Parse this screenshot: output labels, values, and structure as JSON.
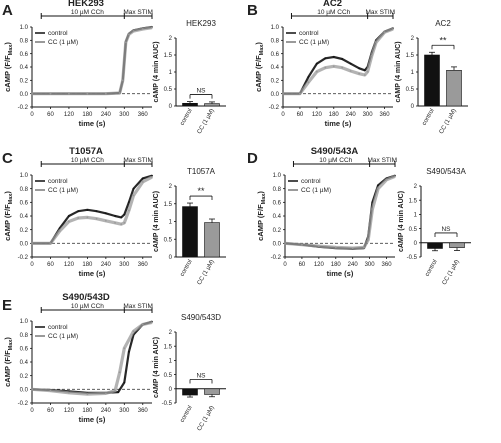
{
  "panels": [
    {
      "letter": "A",
      "title": "HEK293",
      "bar_title": "HEK293"
    },
    {
      "letter": "B",
      "title": "AC2",
      "bar_title": "AC2"
    },
    {
      "letter": "C",
      "title": "T1057A",
      "bar_title": "T1057A"
    },
    {
      "letter": "D",
      "title": "S490/543A",
      "bar_title": "S490/543A"
    },
    {
      "letter": "E",
      "title": "S490/543D",
      "bar_title": "S490/543D"
    }
  ],
  "common": {
    "stim_label_cch": "10 µM CCh",
    "stim_label_max": "Max STIM",
    "trace_ylabel": "cAMP (F/F",
    "trace_ylabel_sub": "Max",
    "trace_ylabel_close": ")",
    "trace_xlabel": "time (s)",
    "bar_ylabel": "cAMP (4 min AUC)",
    "legend_control": "control",
    "legend_cc": "CC (1 µM)",
    "bar_categories": [
      "control",
      "CC (1 µM)"
    ]
  },
  "colors": {
    "control": "#111111",
    "cc": "#9a9a9a"
  },
  "chart_data": [
    {
      "type": "line",
      "panel": "A",
      "title": "HEK293",
      "xlabel": "time (s)",
      "ylabel": "cAMP (F/FMax)",
      "xlim": [
        0,
        390
      ],
      "ylim": [
        -0.2,
        1.0
      ],
      "xticks": [
        0,
        60,
        120,
        180,
        240,
        300,
        360
      ],
      "yticks": [
        -0.2,
        0.0,
        0.2,
        0.4,
        0.6,
        0.8,
        1.0
      ],
      "series": [
        {
          "name": "control",
          "points": [
            [
              0,
              0
            ],
            [
              60,
              0
            ],
            [
              120,
              0
            ],
            [
              180,
              0
            ],
            [
              240,
              0
            ],
            [
              285,
              0.01
            ],
            [
              295,
              0.2
            ],
            [
              305,
              0.78
            ],
            [
              315,
              0.9
            ],
            [
              330,
              0.95
            ],
            [
              360,
              0.98
            ],
            [
              390,
              1.0
            ]
          ]
        },
        {
          "name": "CC (1 µM)",
          "points": [
            [
              0,
              0
            ],
            [
              60,
              0
            ],
            [
              120,
              0
            ],
            [
              180,
              0
            ],
            [
              240,
              0
            ],
            [
              285,
              0.01
            ],
            [
              295,
              0.2
            ],
            [
              305,
              0.77
            ],
            [
              315,
              0.89
            ],
            [
              330,
              0.94
            ],
            [
              360,
              0.97
            ],
            [
              390,
              0.99
            ]
          ]
        }
      ]
    },
    {
      "type": "bar",
      "panel": "A",
      "title": "HEK293",
      "categories": [
        "control",
        "CC (1 µM)"
      ],
      "values": [
        0.08,
        0.07
      ],
      "errors": [
        0.05,
        0.05
      ],
      "ylabel": "cAMP (4 min AUC)",
      "ylim": [
        0,
        2.0
      ],
      "yticks": [
        0,
        0.5,
        1.0,
        1.5,
        2.0
      ],
      "significance": "NS"
    },
    {
      "type": "line",
      "panel": "B",
      "title": "AC2",
      "xlabel": "time (s)",
      "ylabel": "cAMP (F/FMax)",
      "xlim": [
        0,
        390
      ],
      "ylim": [
        -0.2,
        1.0
      ],
      "xticks": [
        0,
        60,
        120,
        180,
        240,
        300,
        360
      ],
      "yticks": [
        -0.2,
        0.0,
        0.2,
        0.4,
        0.6,
        0.8,
        1.0
      ],
      "series": [
        {
          "name": "control",
          "points": [
            [
              0,
              0
            ],
            [
              60,
              0
            ],
            [
              90,
              0.25
            ],
            [
              120,
              0.45
            ],
            [
              150,
              0.53
            ],
            [
              180,
              0.55
            ],
            [
              210,
              0.52
            ],
            [
              240,
              0.45
            ],
            [
              270,
              0.38
            ],
            [
              290,
              0.35
            ],
            [
              300,
              0.4
            ],
            [
              315,
              0.62
            ],
            [
              330,
              0.8
            ],
            [
              360,
              0.93
            ],
            [
              390,
              0.98
            ]
          ]
        },
        {
          "name": "CC (1 µM)",
          "points": [
            [
              0,
              0
            ],
            [
              60,
              0
            ],
            [
              90,
              0.17
            ],
            [
              120,
              0.33
            ],
            [
              150,
              0.39
            ],
            [
              180,
              0.41
            ],
            [
              210,
              0.39
            ],
            [
              240,
              0.34
            ],
            [
              270,
              0.3
            ],
            [
              290,
              0.28
            ],
            [
              300,
              0.33
            ],
            [
              315,
              0.57
            ],
            [
              330,
              0.77
            ],
            [
              360,
              0.92
            ],
            [
              390,
              0.97
            ]
          ]
        }
      ]
    },
    {
      "type": "bar",
      "panel": "B",
      "title": "AC2",
      "categories": [
        "control",
        "CC (1 µM)"
      ],
      "values": [
        1.5,
        1.05
      ],
      "errors": [
        0.08,
        0.1
      ],
      "ylabel": "cAMP (4 min AUC)",
      "ylim": [
        0,
        2.0
      ],
      "yticks": [
        0,
        0.5,
        1.0,
        1.5,
        2.0
      ],
      "significance": "**"
    },
    {
      "type": "line",
      "panel": "C",
      "title": "T1057A",
      "xlabel": "time (s)",
      "ylabel": "cAMP (F/FMax)",
      "xlim": [
        0,
        390
      ],
      "ylim": [
        -0.2,
        1.0
      ],
      "xticks": [
        0,
        60,
        120,
        180,
        240,
        300,
        360
      ],
      "yticks": [
        -0.2,
        0.0,
        0.2,
        0.4,
        0.6,
        0.8,
        1.0
      ],
      "series": [
        {
          "name": "control",
          "points": [
            [
              0,
              0
            ],
            [
              60,
              0
            ],
            [
              90,
              0.22
            ],
            [
              120,
              0.4
            ],
            [
              150,
              0.47
            ],
            [
              180,
              0.49
            ],
            [
              210,
              0.47
            ],
            [
              240,
              0.44
            ],
            [
              270,
              0.4
            ],
            [
              290,
              0.38
            ],
            [
              300,
              0.42
            ],
            [
              315,
              0.6
            ],
            [
              330,
              0.8
            ],
            [
              360,
              0.95
            ],
            [
              390,
              0.99
            ]
          ]
        },
        {
          "name": "CC (1 µM)",
          "points": [
            [
              0,
              0
            ],
            [
              60,
              0
            ],
            [
              90,
              0.18
            ],
            [
              120,
              0.32
            ],
            [
              150,
              0.37
            ],
            [
              180,
              0.38
            ],
            [
              210,
              0.36
            ],
            [
              240,
              0.33
            ],
            [
              270,
              0.3
            ],
            [
              290,
              0.28
            ],
            [
              300,
              0.3
            ],
            [
              315,
              0.48
            ],
            [
              330,
              0.7
            ],
            [
              360,
              0.9
            ],
            [
              390,
              0.97
            ]
          ]
        }
      ]
    },
    {
      "type": "bar",
      "panel": "C",
      "title": "T1057A",
      "categories": [
        "control",
        "CC (1 µM)"
      ],
      "values": [
        1.42,
        0.97
      ],
      "errors": [
        0.1,
        0.1
      ],
      "ylabel": "cAMP (4 min AUC)",
      "ylim": [
        0,
        2.0
      ],
      "yticks": [
        0,
        0.5,
        1.0,
        1.5,
        2.0
      ],
      "significance": "**"
    },
    {
      "type": "line",
      "panel": "D",
      "title": "S490/543A",
      "xlabel": "time (s)",
      "ylabel": "cAMP (F/FMax)",
      "xlim": [
        0,
        390
      ],
      "ylim": [
        -0.2,
        1.0
      ],
      "xticks": [
        0,
        60,
        120,
        180,
        240,
        300,
        360
      ],
      "yticks": [
        -0.2,
        0.0,
        0.2,
        0.4,
        0.6,
        0.8,
        1.0
      ],
      "series": [
        {
          "name": "control",
          "points": [
            [
              0,
              0
            ],
            [
              60,
              -0.02
            ],
            [
              120,
              -0.05
            ],
            [
              180,
              -0.07
            ],
            [
              240,
              -0.08
            ],
            [
              280,
              -0.07
            ],
            [
              295,
              0.1
            ],
            [
              310,
              0.6
            ],
            [
              330,
              0.85
            ],
            [
              360,
              0.95
            ],
            [
              390,
              0.99
            ]
          ]
        },
        {
          "name": "CC (1 µM)",
          "points": [
            [
              0,
              0
            ],
            [
              60,
              -0.02
            ],
            [
              120,
              -0.04
            ],
            [
              180,
              -0.06
            ],
            [
              240,
              -0.07
            ],
            [
              280,
              -0.06
            ],
            [
              295,
              0.05
            ],
            [
              310,
              0.5
            ],
            [
              330,
              0.8
            ],
            [
              360,
              0.93
            ],
            [
              390,
              0.98
            ]
          ]
        }
      ]
    },
    {
      "type": "bar",
      "panel": "D",
      "title": "S490/543A",
      "categories": [
        "control",
        "CC (1 µM)"
      ],
      "values": [
        -0.2,
        -0.17
      ],
      "errors": [
        0.08,
        0.1
      ],
      "ylabel": "cAMP (4 min AUC)",
      "ylim": [
        -0.5,
        2.0
      ],
      "yticks": [
        -0.5,
        0,
        0.5,
        1.0,
        1.5,
        2.0
      ],
      "significance": "NS"
    },
    {
      "type": "line",
      "panel": "E",
      "title": "S490/543D",
      "xlabel": "time (s)",
      "ylabel": "cAMP (F/FMax)",
      "xlim": [
        0,
        390
      ],
      "ylim": [
        -0.2,
        1.0
      ],
      "xticks": [
        0,
        60,
        120,
        180,
        240,
        300,
        360
      ],
      "yticks": [
        -0.2,
        0.0,
        0.2,
        0.4,
        0.6,
        0.8,
        1.0
      ],
      "series": [
        {
          "name": "control",
          "points": [
            [
              0,
              0
            ],
            [
              60,
              -0.01
            ],
            [
              120,
              -0.03
            ],
            [
              180,
              -0.05
            ],
            [
              240,
              -0.05
            ],
            [
              280,
              -0.04
            ],
            [
              300,
              0.1
            ],
            [
              315,
              0.55
            ],
            [
              330,
              0.8
            ],
            [
              360,
              0.95
            ],
            [
              390,
              0.99
            ]
          ]
        },
        {
          "name": "CC (1 µM)",
          "points": [
            [
              0,
              0
            ],
            [
              60,
              -0.02
            ],
            [
              120,
              -0.05
            ],
            [
              180,
              -0.07
            ],
            [
              240,
              -0.06
            ],
            [
              270,
              -0.02
            ],
            [
              285,
              0.25
            ],
            [
              300,
              0.6
            ],
            [
              330,
              0.85
            ],
            [
              360,
              0.95
            ],
            [
              390,
              0.98
            ]
          ]
        }
      ]
    },
    {
      "type": "bar",
      "panel": "E",
      "title": "S490/543D",
      "categories": [
        "control",
        "CC (1 µM)"
      ],
      "values": [
        -0.22,
        -0.2
      ],
      "errors": [
        0.07,
        0.08
      ],
      "ylabel": "cAMP (4 min AUC)",
      "ylim": [
        -0.5,
        2.0
      ],
      "yticks": [
        -0.5,
        0,
        0.5,
        1.0,
        1.5,
        2.0
      ],
      "significance": "NS"
    }
  ]
}
